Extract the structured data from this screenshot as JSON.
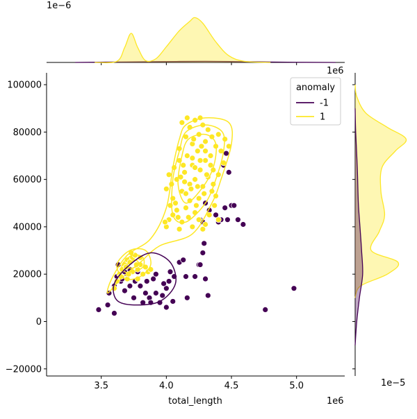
{
  "chart_data": {
    "type": "scatter",
    "title": "",
    "xlabel": "total_length",
    "ylabel": "",
    "x_offset_label": "1e6",
    "y_offset_label": "1e6",
    "top_marginal_offset_label": "1e−6",
    "right_marginal_offset_label": "1e−5",
    "xlim": [
      3.08,
      5.37
    ],
    "ylim": [
      -23000,
      105000
    ],
    "xticks": [
      {
        "value": 3.5,
        "label": "3.5"
      },
      {
        "value": 4.0,
        "label": "4.0"
      },
      {
        "value": 4.5,
        "label": "4.5"
      },
      {
        "value": 5.0,
        "label": "5.0"
      }
    ],
    "yticks": [
      {
        "value": -20000,
        "label": "−20000"
      },
      {
        "value": 0,
        "label": "0"
      },
      {
        "value": 20000,
        "label": "20000"
      },
      {
        "value": 40000,
        "label": "40000"
      },
      {
        "value": 60000,
        "label": "60000"
      },
      {
        "value": 80000,
        "label": "80000"
      },
      {
        "value": 100000,
        "label": "100000"
      }
    ],
    "legend": {
      "title": "anomaly",
      "placement": "top-right",
      "entries": [
        {
          "label": "-1",
          "color": "#440154"
        },
        {
          "label": "1",
          "color": "#fde725"
        }
      ]
    },
    "colors": {
      "anomaly": "#440154",
      "normal": "#fde725",
      "normal_fill": "#fdf6be"
    },
    "series": [
      {
        "name": "-1",
        "color": "#440154",
        "points": [
          [
            3.48,
            5000
          ],
          [
            3.55,
            7000
          ],
          [
            3.6,
            3500
          ],
          [
            3.56,
            12000
          ],
          [
            3.6,
            15000
          ],
          [
            3.62,
            19000
          ],
          [
            3.63,
            24000
          ],
          [
            3.65,
            17000
          ],
          [
            3.68,
            13000
          ],
          [
            3.7,
            20000
          ],
          [
            3.72,
            15000
          ],
          [
            3.75,
            10000
          ],
          [
            3.78,
            21000
          ],
          [
            3.8,
            15000
          ],
          [
            3.82,
            8000
          ],
          [
            3.85,
            17000
          ],
          [
            3.87,
            10000
          ],
          [
            3.88,
            8000
          ],
          [
            3.9,
            18000
          ],
          [
            3.92,
            20000
          ],
          [
            3.95,
            8000
          ],
          [
            3.97,
            11000
          ],
          [
            4.0,
            14000
          ],
          [
            4.02,
            17000
          ],
          [
            4.05,
            8500
          ],
          [
            4.06,
            19000
          ],
          [
            4.1,
            25000
          ],
          [
            4.13,
            26000
          ],
          [
            4.15,
            19000
          ],
          [
            4.16,
            10000
          ],
          [
            4.22,
            19000
          ],
          [
            4.25,
            24000
          ],
          [
            4.26,
            24000
          ],
          [
            4.28,
            29000
          ],
          [
            4.29,
            33000
          ],
          [
            4.3,
            18000
          ],
          [
            4.32,
            11000
          ],
          [
            4.38,
            45000
          ],
          [
            4.4,
            42000
          ],
          [
            4.42,
            43000
          ],
          [
            4.45,
            48000
          ],
          [
            4.47,
            43000
          ],
          [
            4.5,
            49000
          ],
          [
            4.52,
            49000
          ],
          [
            4.55,
            43000
          ],
          [
            4.59,
            41000
          ],
          [
            4.44,
            66000
          ],
          [
            4.46,
            71000
          ],
          [
            4.48,
            63000
          ],
          [
            4.76,
            5000
          ],
          [
            4.98,
            14000
          ],
          [
            3.72,
            22000
          ],
          [
            3.68,
            21000
          ],
          [
            3.66,
            18000
          ],
          [
            3.92,
            12000
          ],
          [
            3.98,
            16000
          ],
          [
            4.0,
            6000
          ],
          [
            4.26,
            43000
          ],
          [
            4.3,
            50000
          ],
          [
            4.33,
            47000
          ],
          [
            4.28,
            42000
          ],
          [
            3.76,
            17000
          ],
          [
            3.84,
            12000
          ],
          [
            4.03,
            21000
          ]
        ]
      },
      {
        "name": "1",
        "color": "#fde725",
        "points": [
          [
            3.6,
            14000
          ],
          [
            3.62,
            17000
          ],
          [
            3.64,
            20000
          ],
          [
            3.66,
            22000
          ],
          [
            3.68,
            24000
          ],
          [
            3.7,
            26000
          ],
          [
            3.72,
            25000
          ],
          [
            3.74,
            27000
          ],
          [
            3.76,
            28000
          ],
          [
            3.78,
            22000
          ],
          [
            3.8,
            24000
          ],
          [
            3.82,
            20000
          ],
          [
            3.84,
            23000
          ],
          [
            3.86,
            21000
          ],
          [
            3.88,
            22000
          ],
          [
            3.7,
            18000
          ],
          [
            3.65,
            19000
          ],
          [
            3.74,
            21000
          ],
          [
            3.78,
            18000
          ],
          [
            3.8,
            27000
          ],
          [
            3.69,
            23000
          ],
          [
            3.73,
            29000
          ],
          [
            3.71,
            20000
          ],
          [
            3.77,
            24000
          ],
          [
            4.0,
            40000
          ],
          [
            4.02,
            43000
          ],
          [
            4.05,
            45000
          ],
          [
            4.07,
            50000
          ],
          [
            4.1,
            39000
          ],
          [
            4.12,
            42000
          ],
          [
            4.15,
            48000
          ],
          [
            4.17,
            44000
          ],
          [
            4.2,
            40000
          ],
          [
            4.22,
            46000
          ],
          [
            4.25,
            43000
          ],
          [
            4.28,
            39000
          ],
          [
            4.3,
            41000
          ],
          [
            4.0,
            56000
          ],
          [
            4.02,
            62000
          ],
          [
            4.04,
            58000
          ],
          [
            4.06,
            65000
          ],
          [
            4.08,
            60000
          ],
          [
            4.1,
            68000
          ],
          [
            4.12,
            55000
          ],
          [
            4.14,
            63000
          ],
          [
            4.16,
            70000
          ],
          [
            4.18,
            58000
          ],
          [
            4.2,
            66000
          ],
          [
            4.22,
            60000
          ],
          [
            4.24,
            72000
          ],
          [
            4.26,
            64000
          ],
          [
            4.28,
            57000
          ],
          [
            4.3,
            68000
          ],
          [
            4.32,
            61000
          ],
          [
            4.34,
            66000
          ],
          [
            4.36,
            58000
          ],
          [
            4.38,
            53000
          ],
          [
            4.4,
            62000
          ],
          [
            4.05,
            52000
          ],
          [
            4.15,
            54000
          ],
          [
            4.25,
            52000
          ],
          [
            4.35,
            55000
          ],
          [
            4.1,
            73000
          ],
          [
            4.15,
            78000
          ],
          [
            4.18,
            82000
          ],
          [
            4.2,
            75000
          ],
          [
            4.22,
            85000
          ],
          [
            4.25,
            79000
          ],
          [
            4.28,
            83000
          ],
          [
            4.3,
            76000
          ],
          [
            4.32,
            81000
          ],
          [
            4.35,
            78000
          ],
          [
            4.38,
            74000
          ],
          [
            4.4,
            79000
          ],
          [
            4.42,
            72000
          ],
          [
            4.45,
            77000
          ],
          [
            4.48,
            74000
          ],
          [
            4.12,
            84000
          ],
          [
            4.16,
            86000
          ],
          [
            4.26,
            86000
          ],
          [
            4.3,
            72000
          ],
          [
            4.2,
            69000
          ],
          [
            4.24,
            57000
          ],
          [
            4.08,
            47000
          ],
          [
            4.18,
            51000
          ],
          [
            4.33,
            45000
          ],
          [
            4.37,
            49000
          ],
          [
            4.22,
            65000
          ],
          [
            4.14,
            59000
          ],
          [
            4.26,
            68000
          ],
          [
            4.31,
            62000
          ],
          [
            4.13,
            66000
          ],
          [
            4.21,
            77000
          ],
          [
            4.27,
            74000
          ],
          [
            4.34,
            70000
          ],
          [
            4.44,
            67000
          ],
          [
            4.11,
            61000
          ],
          [
            4.19,
            56000
          ],
          [
            4.29,
            54000
          ],
          [
            4.36,
            64000
          ],
          [
            4.03,
            49000
          ],
          [
            4.09,
            44000
          ],
          [
            4.23,
            49000
          ],
          [
            3.99,
            42000
          ],
          [
            4.4,
            43000
          ]
        ]
      }
    ],
    "kde_contours": [
      {
        "series": "1",
        "color": "#fde725",
        "paths": [
          [
            [
              4.15,
              83000
            ],
            [
              4.3,
              86000
            ],
            [
              4.48,
              84000
            ],
            [
              4.5,
              75000
            ],
            [
              4.42,
              60000
            ],
            [
              4.35,
              50000
            ],
            [
              4.2,
              37000
            ],
            [
              3.95,
              32000
            ],
            [
              3.8,
              25000
            ],
            [
              3.65,
              18000
            ],
            [
              3.55,
              12000
            ],
            [
              3.58,
              18000
            ],
            [
              3.7,
              28000
            ],
            [
              3.88,
              35000
            ],
            [
              4.0,
              48000
            ],
            [
              4.05,
              65000
            ],
            [
              4.1,
              77000
            ]
          ],
          [
            [
              4.15,
              80000
            ],
            [
              4.3,
              83000
            ],
            [
              4.43,
              80000
            ],
            [
              4.44,
              72000
            ],
            [
              4.38,
              60000
            ],
            [
              4.3,
              50000
            ],
            [
              4.15,
              42000
            ],
            [
              4.05,
              45000
            ],
            [
              4.05,
              60000
            ],
            [
              4.1,
              72000
            ]
          ],
          [
            [
              4.17,
              77000
            ],
            [
              4.3,
              79000
            ],
            [
              4.38,
              75000
            ],
            [
              4.36,
              65000
            ],
            [
              4.27,
              56000
            ],
            [
              4.15,
              50000
            ],
            [
              4.09,
              58000
            ],
            [
              4.12,
              70000
            ]
          ],
          [
            [
              3.62,
              24000
            ],
            [
              3.72,
              30000
            ],
            [
              3.84,
              30000
            ],
            [
              3.88,
              24000
            ],
            [
              3.8,
              19000
            ],
            [
              3.68,
              18000
            ]
          ],
          [
            [
              3.66,
              24000
            ],
            [
              3.74,
              28000
            ],
            [
              3.82,
              27000
            ],
            [
              3.82,
              23000
            ],
            [
              3.74,
              21000
            ],
            [
              3.68,
              21000
            ]
          ],
          [
            [
              3.7,
              24000
            ],
            [
              3.76,
              26000
            ],
            [
              3.79,
              24000
            ],
            [
              3.73,
              22500
            ]
          ]
        ]
      },
      {
        "series": "-1",
        "color": "#440154",
        "paths": [
          [
            [
              3.6,
              16000
            ],
            [
              3.72,
              24000
            ],
            [
              3.88,
              29000
            ],
            [
              4.03,
              25000
            ],
            [
              4.07,
              16000
            ],
            [
              3.95,
              8500
            ],
            [
              3.75,
              7000
            ],
            [
              3.62,
              9000
            ]
          ]
        ]
      }
    ],
    "top_marginal": {
      "normal_density": [
        [
          3.45,
          0.0
        ],
        [
          3.62,
          0.03
        ],
        [
          3.68,
          0.4
        ],
        [
          3.73,
          0.78
        ],
        [
          3.78,
          0.4
        ],
        [
          3.84,
          0.05
        ],
        [
          3.92,
          0.1
        ],
        [
          4.0,
          0.42
        ],
        [
          4.1,
          0.85
        ],
        [
          4.18,
          1.1
        ],
        [
          4.22,
          1.2
        ],
        [
          4.28,
          1.05
        ],
        [
          4.38,
          0.55
        ],
        [
          4.48,
          0.18
        ],
        [
          4.6,
          0.03
        ],
        [
          4.8,
          0.0
        ]
      ],
      "anomaly_density": [
        [
          3.3,
          0.0
        ],
        [
          3.6,
          0.01
        ],
        [
          3.9,
          0.02
        ],
        [
          4.3,
          0.03
        ],
        [
          4.6,
          0.02
        ],
        [
          5.0,
          0.005
        ],
        [
          5.3,
          0.0
        ]
      ],
      "max": 1.3
    },
    "right_marginal": {
      "normal_density": [
        [
          10000,
          0.0
        ],
        [
          15000,
          0.1
        ],
        [
          20000,
          0.6
        ],
        [
          25000,
          0.8
        ],
        [
          30000,
          0.3
        ],
        [
          38000,
          0.45
        ],
        [
          45000,
          0.55
        ],
        [
          55000,
          0.48
        ],
        [
          65000,
          0.5
        ],
        [
          72000,
          0.75
        ],
        [
          77000,
          0.95
        ],
        [
          82000,
          0.6
        ],
        [
          88000,
          0.2
        ],
        [
          95000,
          0.03
        ],
        [
          100000,
          0.0
        ]
      ],
      "anomaly_density": [
        [
          -10000,
          0.0
        ],
        [
          0,
          0.03
        ],
        [
          10000,
          0.08
        ],
        [
          20000,
          0.14
        ],
        [
          30000,
          0.12
        ],
        [
          40000,
          0.09
        ],
        [
          50000,
          0.06
        ],
        [
          65000,
          0.04
        ],
        [
          80000,
          0.01
        ],
        [
          90000,
          0.0
        ]
      ],
      "max": 1.05
    }
  }
}
